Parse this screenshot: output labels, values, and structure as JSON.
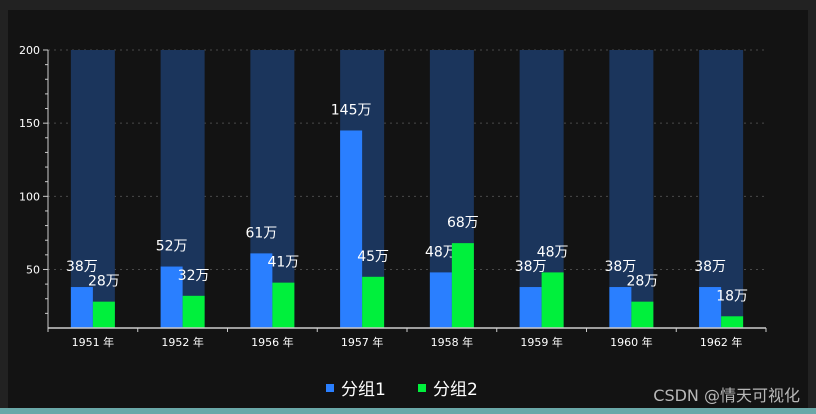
{
  "chart_data": {
    "type": "bar",
    "categories": [
      "1951 年",
      "1952 年",
      "1956 年",
      "1957 年",
      "1958 年",
      "1959 年",
      "1960 年",
      "1962 年"
    ],
    "series": [
      {
        "name": "分组1",
        "values": [
          38,
          52,
          61,
          145,
          48,
          38,
          38,
          38
        ],
        "labels": [
          "38万",
          "52万",
          "61万",
          "145万",
          "48万",
          "38万",
          "38万",
          "38万"
        ],
        "color": "#2a7fff"
      },
      {
        "name": "分组2",
        "values": [
          28,
          32,
          41,
          45,
          68,
          48,
          28,
          18
        ],
        "labels": [
          "28万",
          "32万",
          "41万",
          "45万",
          "68万",
          "48万",
          "28万",
          "18万"
        ],
        "color": "#00f03c"
      }
    ],
    "background_bars": {
      "value": 200,
      "color": "#1b355c"
    },
    "y_ticks": [
      50,
      100,
      150,
      200
    ],
    "ylim": [
      10,
      200
    ],
    "grid": true,
    "legend_position": "bottom-center"
  },
  "watermark": "CSDN @情天可视化",
  "colors": {
    "background": "#131313",
    "frame": "#222222",
    "grid": "#4a4a4a",
    "axis": "#cccccc"
  }
}
